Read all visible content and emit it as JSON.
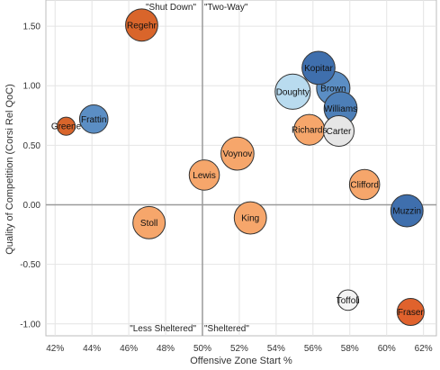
{
  "chart_data": {
    "type": "scatter",
    "xlabel": "Offensive Zone Start %",
    "ylabel": "Quality of Competition (Corsi Rel QoC)",
    "xlim": [
      41.5,
      62.7
    ],
    "ylim": [
      -1.1,
      1.72
    ],
    "x_ticks": [
      "42%",
      "44%",
      "46%",
      "48%",
      "50%",
      "52%",
      "54%",
      "56%",
      "58%",
      "60%",
      "62%"
    ],
    "x_tick_values": [
      42,
      44,
      46,
      48,
      50,
      52,
      54,
      56,
      58,
      60,
      62
    ],
    "y_ticks": [
      "1.50",
      "1.00",
      "0.50",
      "0.00",
      "-0.50",
      "-1.00"
    ],
    "y_tick_values": [
      1.5,
      1.0,
      0.5,
      0.0,
      -0.5,
      -1.0
    ],
    "reference_lines": {
      "x": 50,
      "y": 0
    },
    "grid": true,
    "quadrant_labels": {
      "top_left": "\"Shut Down\"",
      "top_right": "\"Two-Way\"",
      "bottom_left": "\"Less Sheltered\"",
      "bottom_right": "\"Sheltered\""
    },
    "points": [
      {
        "name": "Regehr",
        "x": 46.7,
        "y": 1.51,
        "size": 1.6,
        "color": "#d9652b"
      },
      {
        "name": "Frattin",
        "x": 44.1,
        "y": 0.72,
        "size": 1.15,
        "color": "#5b8ec4"
      },
      {
        "name": "Greene",
        "x": 42.6,
        "y": 0.66,
        "size": 0.3,
        "color": "#d9652b"
      },
      {
        "name": "Kopitar",
        "x": 56.3,
        "y": 1.15,
        "size": 1.7,
        "color": "#3f6fad"
      },
      {
        "name": "Brown",
        "x": 57.1,
        "y": 0.98,
        "size": 1.75,
        "color": "#5b8ec4"
      },
      {
        "name": "Doughty",
        "x": 54.9,
        "y": 0.95,
        "size": 2.0,
        "color": "#b9dbef"
      },
      {
        "name": "Williams",
        "x": 57.5,
        "y": 0.81,
        "size": 1.7,
        "color": "#4d7fb8"
      },
      {
        "name": "Richards",
        "x": 55.8,
        "y": 0.63,
        "size": 1.4,
        "color": "#f6a66b"
      },
      {
        "name": "Carter",
        "x": 57.4,
        "y": 0.62,
        "size": 1.4,
        "color": "#e6e6e6"
      },
      {
        "name": "Voynov",
        "x": 51.9,
        "y": 0.43,
        "size": 1.7,
        "color": "#f6a66b"
      },
      {
        "name": "Lewis",
        "x": 50.1,
        "y": 0.25,
        "size": 1.35,
        "color": "#f6a66b"
      },
      {
        "name": "Clifford",
        "x": 58.8,
        "y": 0.17,
        "size": 1.35,
        "color": "#f6a66b"
      },
      {
        "name": "Muzzin",
        "x": 61.1,
        "y": -0.05,
        "size": 1.6,
        "color": "#3f6fad"
      },
      {
        "name": "Stoll",
        "x": 47.1,
        "y": -0.15,
        "size": 1.6,
        "color": "#f6a66b"
      },
      {
        "name": "King",
        "x": 52.6,
        "y": -0.11,
        "size": 1.6,
        "color": "#f6a66b"
      },
      {
        "name": "Toffoli",
        "x": 57.9,
        "y": -0.8,
        "size": 0.45,
        "color": "#f4f4f4"
      },
      {
        "name": "Fraser",
        "x": 61.3,
        "y": -0.9,
        "size": 1.0,
        "color": "#e0622d"
      }
    ]
  }
}
